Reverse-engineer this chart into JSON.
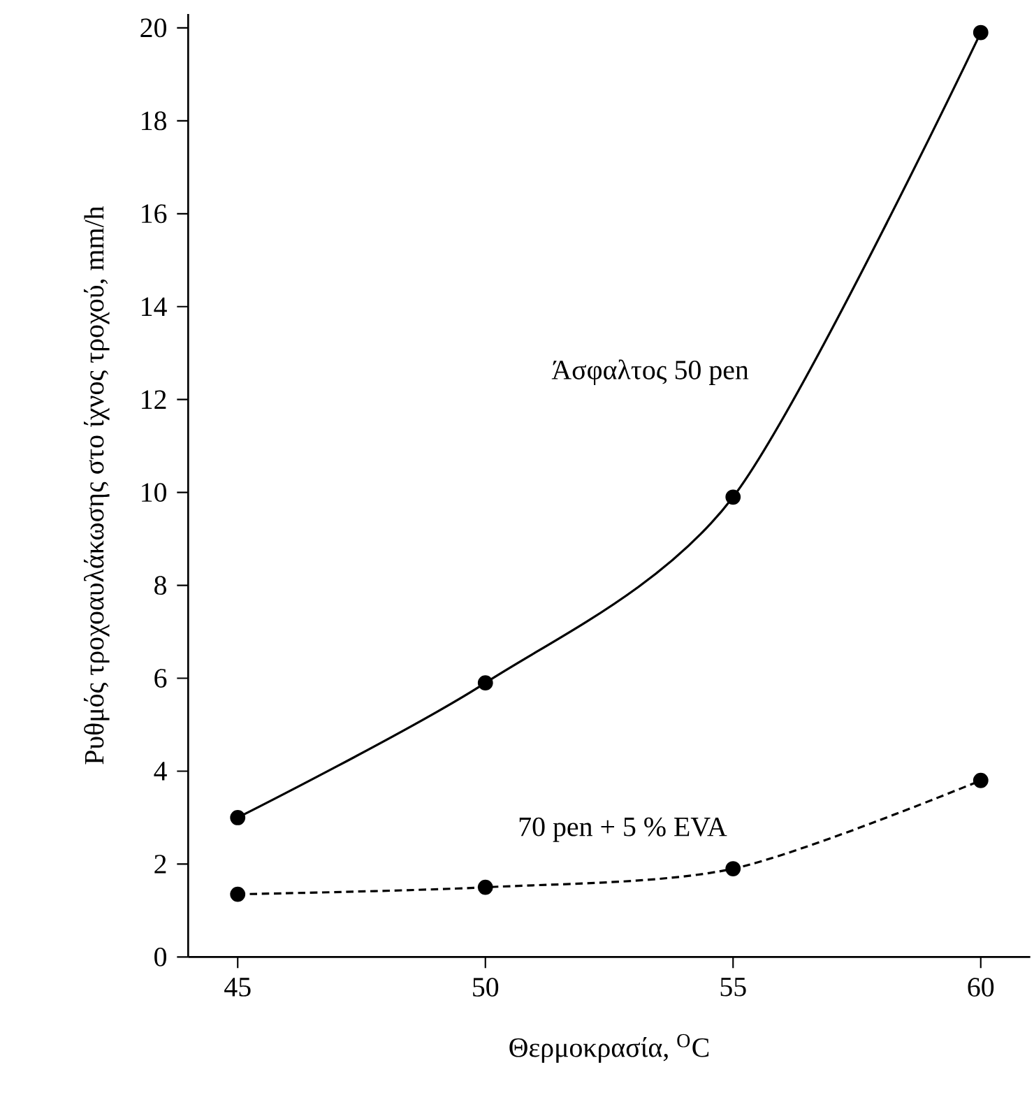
{
  "chart_data": {
    "type": "line",
    "xlabel": "Θερμοκρασία, $^{O}$C",
    "ylabel": "Ρυθμός τροχοαυλάκωσης στο ίχνος τροχού, mm/h",
    "x": [
      45,
      50,
      55,
      60
    ],
    "series": [
      {
        "name": "Άσφαλτος 50 pen",
        "color": "#000000",
        "values": [
          3.0,
          5.9,
          9.9,
          19.9
        ],
        "line_style": "solid"
      },
      {
        "name": "70 pen + 5 % EVA",
        "color": "#000000",
        "values": [
          1.35,
          1.5,
          1.9,
          3.8
        ],
        "line_style": "dashed"
      }
    ],
    "xlim": [
      44,
      61
    ],
    "ylim": [
      0,
      20.3
    ],
    "xticks": [
      45,
      50,
      55,
      60
    ],
    "yticks": [
      0,
      2,
      4,
      6,
      8,
      10,
      12,
      14,
      16,
      18,
      20
    ],
    "marker": "circle",
    "grid": false,
    "legend": false
  }
}
